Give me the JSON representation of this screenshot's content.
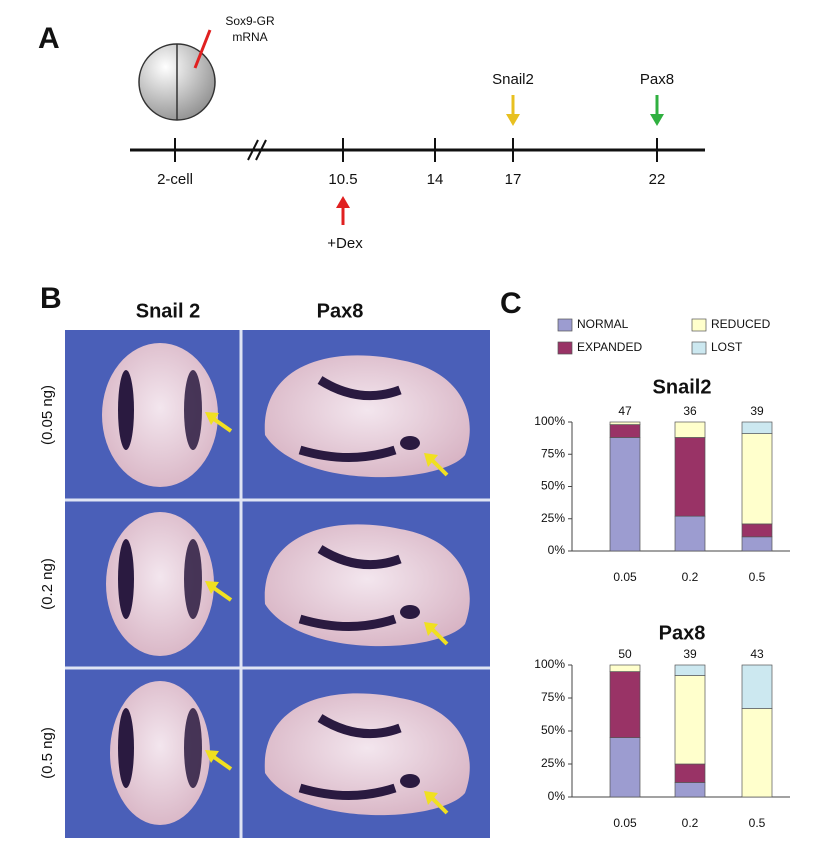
{
  "panel_a": {
    "label": "A",
    "injection": [
      "Sox9-GR",
      "mRNA"
    ],
    "timeline": [
      "2-cell",
      "10.5",
      "14",
      "17",
      "22"
    ],
    "markers": [
      {
        "label": "Snail2"
      },
      {
        "label": "Pax8"
      }
    ],
    "treatment": "+Dex"
  },
  "panel_b": {
    "label": "B",
    "columns": [
      "Snail 2",
      "Pax8"
    ],
    "rows": [
      "(0.05 ng)",
      "(0.2 ng)",
      "(0.5 ng)"
    ]
  },
  "panel_c": {
    "label": "C"
  },
  "chart_data": [
    {
      "type": "bar",
      "stacked": true,
      "title": "Snail2",
      "categories": [
        "0.05",
        "0.2",
        "0.5"
      ],
      "counts": [
        47,
        36,
        39
      ],
      "series": [
        {
          "name": "NORMAL",
          "color": "#9c9cd0",
          "values": [
            88,
            27,
            11
          ]
        },
        {
          "name": "EXPANDED",
          "color": "#993366",
          "values": [
            10,
            61,
            10
          ]
        },
        {
          "name": "REDUCED",
          "color": "#ffffcc",
          "values": [
            2,
            12,
            70
          ]
        },
        {
          "name": "LOST",
          "color": "#cce8f0",
          "values": [
            0,
            0,
            9
          ]
        }
      ],
      "ylim": [
        0,
        100
      ],
      "yticks": [
        {
          "value": 0,
          "label": "0%"
        },
        {
          "value": 25,
          "label": "25%"
        },
        {
          "value": 50,
          "label": "50%"
        },
        {
          "value": 75,
          "label": "75%"
        },
        {
          "value": 100,
          "label": "100%"
        }
      ]
    },
    {
      "type": "bar",
      "stacked": true,
      "title": "Pax8",
      "categories": [
        "0.05",
        "0.2",
        "0.5"
      ],
      "counts": [
        50,
        39,
        43
      ],
      "series": [
        {
          "name": "NORMAL",
          "color": "#9c9cd0",
          "values": [
            45,
            11,
            0
          ]
        },
        {
          "name": "EXPANDED",
          "color": "#993366",
          "values": [
            50,
            14,
            0
          ]
        },
        {
          "name": "REDUCED",
          "color": "#ffffcc",
          "values": [
            5,
            67,
            67
          ]
        },
        {
          "name": "LOST",
          "color": "#cce8f0",
          "values": [
            0,
            8,
            33
          ]
        }
      ],
      "ylim": [
        0,
        100
      ],
      "yticks": [
        {
          "value": 0,
          "label": "0%"
        },
        {
          "value": 25,
          "label": "25%"
        },
        {
          "value": 50,
          "label": "50%"
        },
        {
          "value": 75,
          "label": "75%"
        },
        {
          "value": 100,
          "label": "100%"
        }
      ]
    }
  ]
}
